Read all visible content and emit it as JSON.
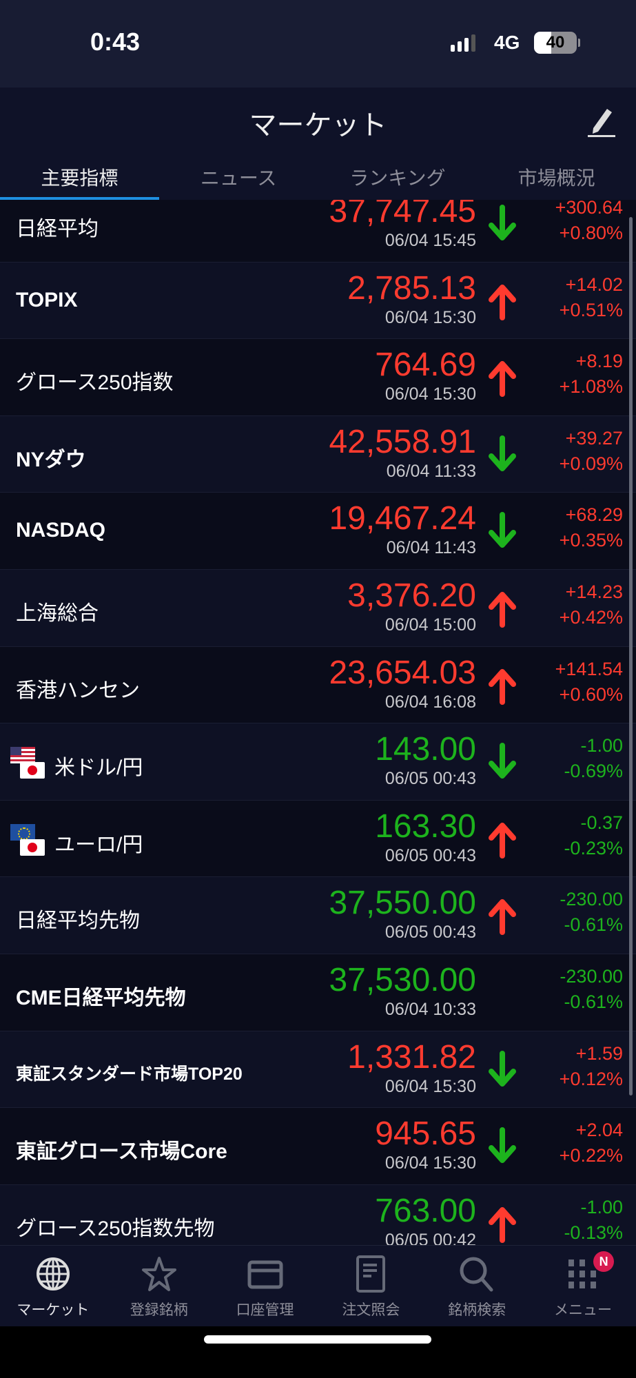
{
  "status_bar": {
    "time": "0:43",
    "network": "4G",
    "battery": "40",
    "battery_level": 0.4
  },
  "header": {
    "title": "マーケット",
    "edit_icon": "pencil-icon"
  },
  "tabs": [
    {
      "label": "主要指標",
      "active": true
    },
    {
      "label": "ニュース",
      "active": false
    },
    {
      "label": "ランキング",
      "active": false
    },
    {
      "label": "市場概況",
      "active": false
    }
  ],
  "colors": {
    "up": "#ff3b2f",
    "down": "#1db31d",
    "accent": "#1e8fe0",
    "badge": "#d81b50"
  },
  "rows": [
    {
      "name": "日経平均",
      "price": "37,747.45",
      "date": "06/04 15:45",
      "arrow": "down",
      "change": "+300.64",
      "pct": "+0.80%",
      "price_color": "up",
      "change_color": "up"
    },
    {
      "name": "TOPIX",
      "price": "2,785.13",
      "date": "06/04 15:30",
      "arrow": "up",
      "change": "+14.02",
      "pct": "+0.51%",
      "price_color": "up",
      "change_color": "up"
    },
    {
      "name": "グロース250指数",
      "price": "764.69",
      "date": "06/04 15:30",
      "arrow": "up",
      "change": "+8.19",
      "pct": "+1.08%",
      "price_color": "up",
      "change_color": "up"
    },
    {
      "name": "NYダウ",
      "price": "42,558.91",
      "date": "06/04 11:33",
      "arrow": "down",
      "change": "+39.27",
      "pct": "+0.09%",
      "price_color": "up",
      "change_color": "up"
    },
    {
      "name": "NASDAQ",
      "price": "19,467.24",
      "date": "06/04 11:43",
      "arrow": "down",
      "change": "+68.29",
      "pct": "+0.35%",
      "price_color": "up",
      "change_color": "up"
    },
    {
      "name": "上海総合",
      "price": "3,376.20",
      "date": "06/04 15:00",
      "arrow": "up",
      "change": "+14.23",
      "pct": "+0.42%",
      "price_color": "up",
      "change_color": "up"
    },
    {
      "name": "香港ハンセン",
      "price": "23,654.03",
      "date": "06/04 16:08",
      "arrow": "up",
      "change": "+141.54",
      "pct": "+0.60%",
      "price_color": "up",
      "change_color": "up"
    },
    {
      "name": "米ドル/円",
      "flag": "us",
      "price": "143.00",
      "date": "06/05 00:43",
      "arrow": "down",
      "change": "-1.00",
      "pct": "-0.69%",
      "price_color": "down",
      "change_color": "down"
    },
    {
      "name": "ユーロ/円",
      "flag": "eu",
      "price": "163.30",
      "date": "06/05 00:43",
      "arrow": "up",
      "change": "-0.37",
      "pct": "-0.23%",
      "price_color": "down",
      "change_color": "down"
    },
    {
      "name": "日経平均先物",
      "price": "37,550.00",
      "date": "06/05 00:43",
      "arrow": "up",
      "change": "-230.00",
      "pct": "-0.61%",
      "price_color": "down",
      "change_color": "down"
    },
    {
      "name": "CME日経平均先物",
      "price": "37,530.00",
      "date": "06/04 10:33",
      "arrow": "none",
      "change": "-230.00",
      "pct": "-0.61%",
      "price_color": "down",
      "change_color": "down"
    },
    {
      "name": "東証スタンダード市場TOP20",
      "price": "1,331.82",
      "date": "06/04 15:30",
      "arrow": "down",
      "change": "+1.59",
      "pct": "+0.12%",
      "price_color": "up",
      "change_color": "up"
    },
    {
      "name": "東証グロース市場Core",
      "price": "945.65",
      "date": "06/04 15:30",
      "arrow": "down",
      "change": "+2.04",
      "pct": "+0.22%",
      "price_color": "up",
      "change_color": "up"
    },
    {
      "name": "グロース250指数先物",
      "price": "763.00",
      "date": "06/05 00:42",
      "arrow": "up",
      "change": "-1.00",
      "pct": "-0.13%",
      "price_color": "down",
      "change_color": "down"
    }
  ],
  "bottom_nav": [
    {
      "label": "マーケット",
      "icon": "globe-icon",
      "active": true
    },
    {
      "label": "登録銘柄",
      "icon": "star-icon"
    },
    {
      "label": "口座管理",
      "icon": "card-icon"
    },
    {
      "label": "注文照会",
      "icon": "document-icon"
    },
    {
      "label": "銘柄検索",
      "icon": "search-icon"
    },
    {
      "label": "メニュー",
      "icon": "grid-icon",
      "badge": "N"
    }
  ]
}
